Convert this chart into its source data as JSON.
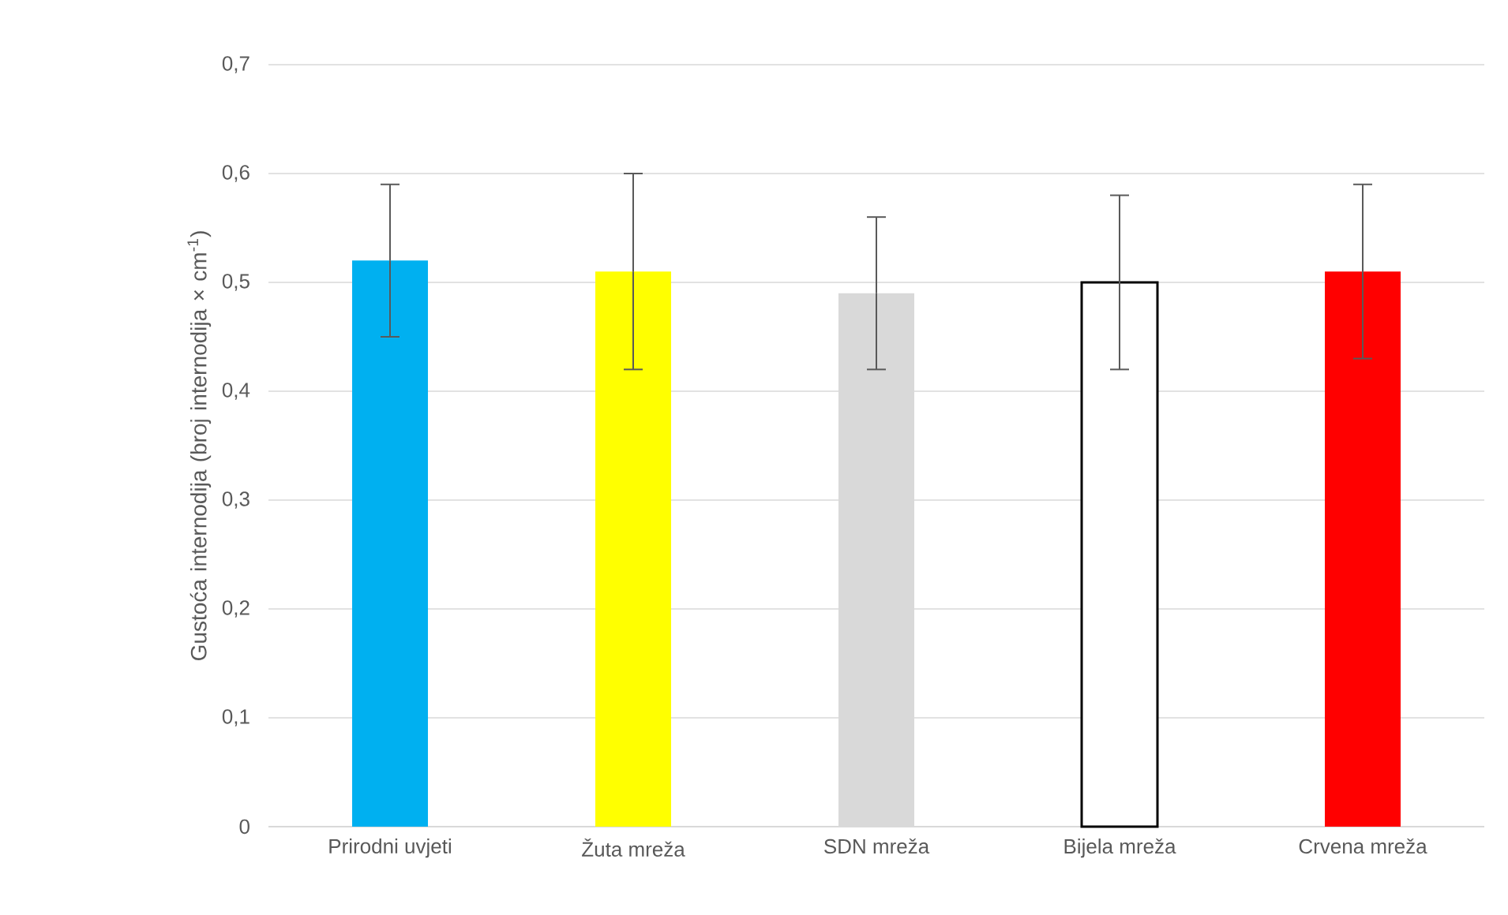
{
  "chart_data": {
    "type": "bar",
    "ylabel": "Gustoća internodija (broj internodija × cm$^{-1}$)",
    "categories": [
      "Prirodni uvjeti",
      "Žuta mreža",
      "SDN mreža",
      "Bijela mreža",
      "Crvena mreža"
    ],
    "values": [
      0.52,
      0.51,
      0.49,
      0.5,
      0.51
    ],
    "errors": [
      0.07,
      0.09,
      0.07,
      0.08,
      0.08
    ],
    "colors": [
      "#00b0f0",
      "#ffff00",
      "#d9d9d9",
      "#ffffff",
      "#ff0000"
    ],
    "ylim": [
      0,
      0.7
    ],
    "yticks": [
      0,
      {
        "value": 0.1,
        "label": "0,1"
      },
      {
        "value": 0.2,
        "label": "0,2"
      },
      {
        "value": 0.3,
        "label": "0,3"
      },
      {
        "value": 0.4,
        "label": "0,4"
      },
      {
        "value": 0.5,
        "label": "0,5"
      },
      {
        "value": 0.6,
        "label": "0,6"
      },
      {
        "value": 0.7,
        "label": "0,7"
      }
    ],
    "grid": "y"
  }
}
